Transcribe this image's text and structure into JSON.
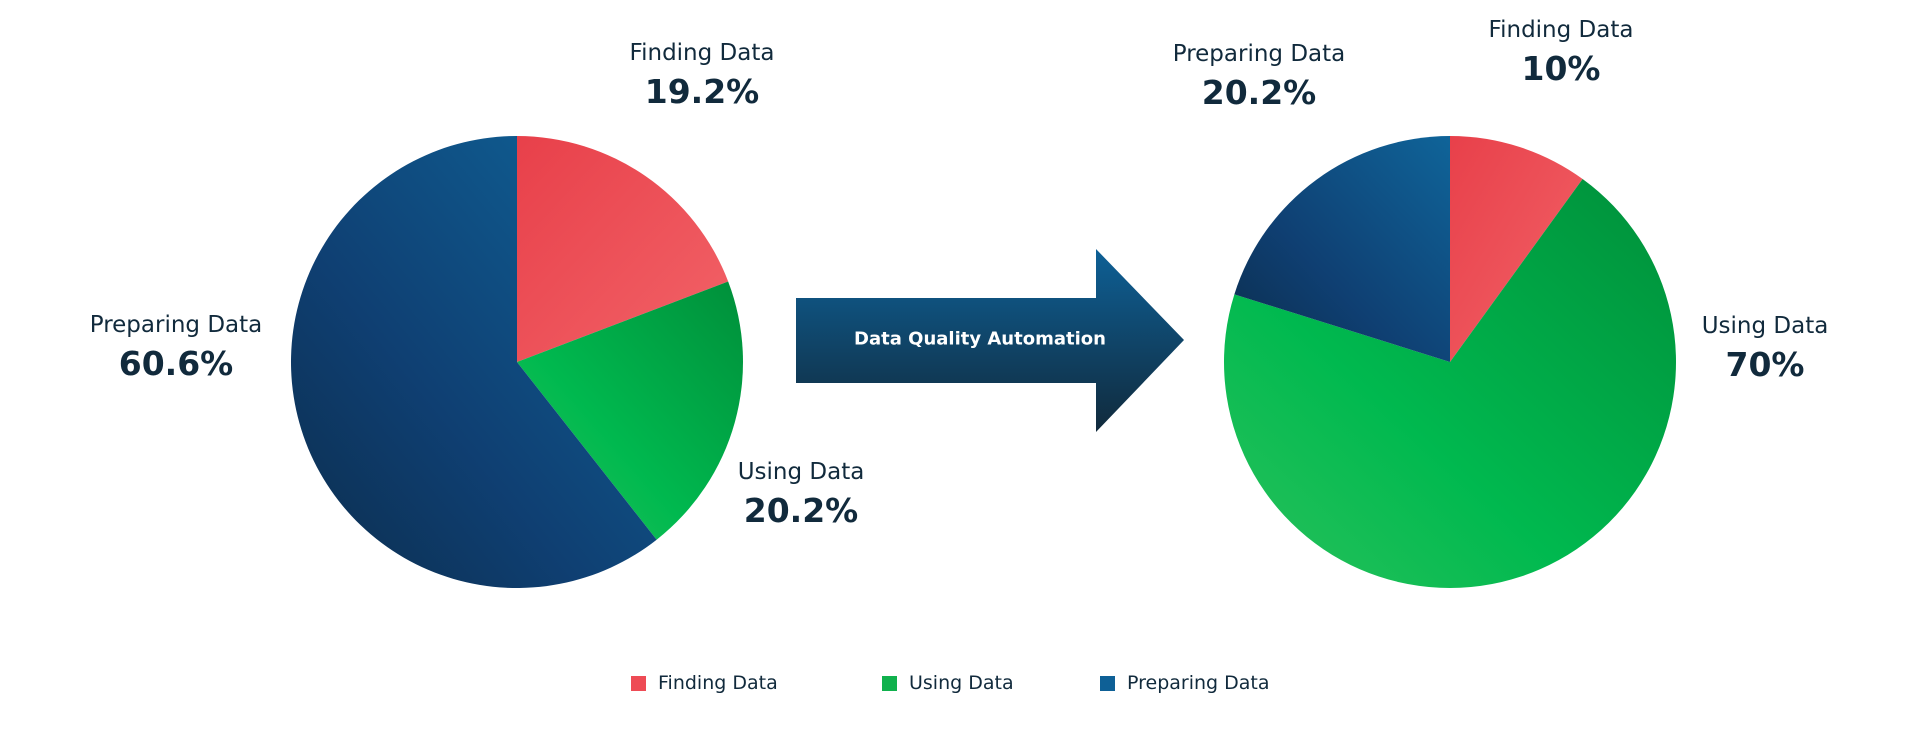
{
  "chart_data": [
    {
      "type": "pie",
      "categories": [
        "Finding Data",
        "Using Data",
        "Preparing Data"
      ],
      "values": [
        19.2,
        20.2,
        60.6
      ],
      "labels": [
        {
          "name": "Finding Data",
          "value": "19.2%"
        },
        {
          "name": "Using Data",
          "value": "20.2%"
        },
        {
          "name": "Preparing Data",
          "value": "60.6%"
        }
      ]
    },
    {
      "type": "pie",
      "categories": [
        "Finding Data",
        "Using Data",
        "Preparing Data"
      ],
      "values": [
        10,
        70,
        20.2
      ],
      "labels": [
        {
          "name": "Finding Data",
          "value": "10%"
        },
        {
          "name": "Using Data",
          "value": "70%"
        },
        {
          "name": "Preparing Data",
          "value": "20.2%"
        }
      ]
    }
  ],
  "arrow_label": "Data Quality Automation",
  "legend": [
    {
      "label": "Finding Data",
      "color": "#ee4b55"
    },
    {
      "label": "Using Data",
      "color": "#10b14d"
    },
    {
      "label": "Preparing Data",
      "color": "#0e6096"
    }
  ],
  "colors": {
    "finding": "#ee4b55",
    "using": "#10b14d",
    "preparing": "#0e6096",
    "preparing_dark": "#0b2d4c",
    "arrow_top": "#0e6096",
    "arrow_bottom": "#112a3c"
  }
}
